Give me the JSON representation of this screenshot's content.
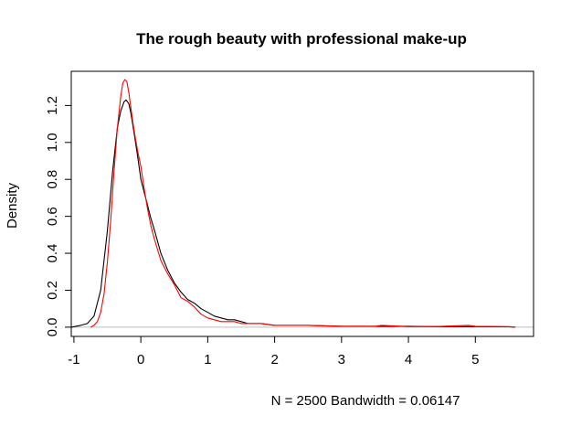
{
  "chart_data": {
    "type": "line",
    "title": "The rough beauty with professional make-up",
    "xlabel": "N = 2500   Bandwidth = 0.06147",
    "ylabel": "Density",
    "xlim": [
      -1.04,
      5.87
    ],
    "ylim": [
      -0.05,
      1.385
    ],
    "x_ticks": [
      -1,
      0,
      1,
      2,
      3,
      4,
      5
    ],
    "y_ticks": [
      0.0,
      0.2,
      0.4,
      0.6,
      0.8,
      1.0,
      1.2
    ],
    "x_tick_labels": [
      "-1",
      "0",
      "1",
      "2",
      "3",
      "4",
      "5"
    ],
    "y_tick_labels": [
      "0.0",
      "0.2",
      "0.4",
      "0.6",
      "0.8",
      "1.0",
      "1.2"
    ],
    "grid": false,
    "baseline": 0,
    "colors": {
      "axis": "#000000",
      "baseline": "#bebebe"
    },
    "series": [
      {
        "color": "#000000",
        "x": [
          -1.04,
          -0.9,
          -0.8,
          -0.7,
          -0.6,
          -0.5,
          -0.42,
          -0.35,
          -0.3,
          -0.25,
          -0.22,
          -0.18,
          -0.15,
          -0.1,
          -0.05,
          0.0,
          0.05,
          0.1,
          0.15,
          0.2,
          0.3,
          0.4,
          0.5,
          0.6,
          0.7,
          0.8,
          0.9,
          1.0,
          1.1,
          1.2,
          1.3,
          1.4,
          1.5,
          1.6,
          1.8,
          2.0,
          2.2,
          2.5,
          3.0,
          3.5,
          4.0,
          4.5,
          5.0,
          5.5,
          5.6
        ],
        "y": [
          0.0,
          0.01,
          0.02,
          0.06,
          0.2,
          0.52,
          0.85,
          1.08,
          1.17,
          1.22,
          1.23,
          1.21,
          1.16,
          1.05,
          0.93,
          0.8,
          0.73,
          0.66,
          0.59,
          0.53,
          0.4,
          0.31,
          0.24,
          0.19,
          0.15,
          0.13,
          0.1,
          0.08,
          0.06,
          0.05,
          0.04,
          0.04,
          0.03,
          0.02,
          0.02,
          0.01,
          0.01,
          0.01,
          0.005,
          0.005,
          0.005,
          0.003,
          0.003,
          0.002,
          0.0
        ]
      },
      {
        "color": "#ff0000",
        "x": [
          -0.75,
          -0.7,
          -0.65,
          -0.6,
          -0.55,
          -0.5,
          -0.45,
          -0.4,
          -0.35,
          -0.3,
          -0.27,
          -0.24,
          -0.21,
          -0.18,
          -0.15,
          -0.12,
          -0.08,
          -0.04,
          0.0,
          0.05,
          0.1,
          0.15,
          0.2,
          0.3,
          0.4,
          0.5,
          0.6,
          0.7,
          0.8,
          0.9,
          1.0,
          1.1,
          1.2,
          1.3,
          1.4,
          1.5,
          1.6,
          1.8,
          2.0,
          2.2,
          2.5,
          3.0,
          3.5,
          3.6,
          4.0,
          4.5,
          4.9,
          5.0,
          5.5,
          5.6
        ],
        "y": [
          0.0,
          0.01,
          0.03,
          0.08,
          0.18,
          0.35,
          0.58,
          0.85,
          1.08,
          1.25,
          1.32,
          1.34,
          1.33,
          1.27,
          1.19,
          1.11,
          1.02,
          0.94,
          0.87,
          0.75,
          0.64,
          0.55,
          0.48,
          0.36,
          0.29,
          0.23,
          0.16,
          0.14,
          0.11,
          0.07,
          0.05,
          0.04,
          0.03,
          0.03,
          0.03,
          0.02,
          0.02,
          0.02,
          0.01,
          0.01,
          0.01,
          0.005,
          0.005,
          0.01,
          0.003,
          0.005,
          0.01,
          0.005,
          0.003,
          0.0
        ]
      }
    ]
  }
}
